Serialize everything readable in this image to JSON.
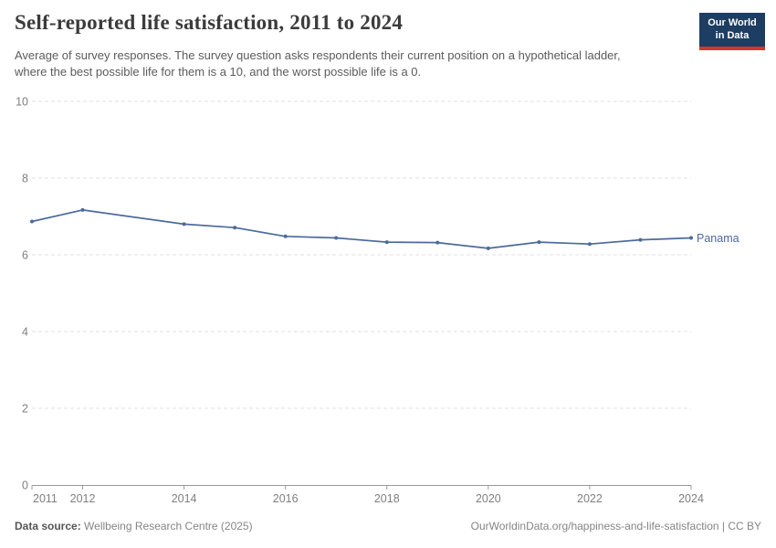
{
  "header": {
    "title": "Self-reported life satisfaction, 2011 to 2024",
    "subtitle": "Average of survey responses. The survey question asks respondents their current position on a hypothetical ladder, where the best possible life for them is a 10, and the worst possible life is a 0.",
    "logo": {
      "line1": "Our World",
      "line2": "in Data",
      "bg": "#1d3d63",
      "accent": "#d7342c"
    }
  },
  "chart_data": {
    "type": "line",
    "title": "Self-reported life satisfaction, 2011 to 2024",
    "xlabel": "",
    "ylabel": "",
    "xlim": [
      2011,
      2024
    ],
    "ylim": [
      0,
      10
    ],
    "x_ticks": [
      2011,
      2012,
      2014,
      2016,
      2018,
      2020,
      2022,
      2024
    ],
    "y_ticks": [
      0,
      2,
      4,
      6,
      8,
      10
    ],
    "grid": "horizontal-dashed",
    "legend": "inline-end-label",
    "series": [
      {
        "name": "Panama",
        "color": "#4c6a9c",
        "x": [
          2011,
          2012,
          2014,
          2015,
          2016,
          2017,
          2018,
          2019,
          2020,
          2021,
          2022,
          2023,
          2024
        ],
        "values": [
          6.87,
          7.17,
          6.8,
          6.71,
          6.48,
          6.44,
          6.33,
          6.32,
          6.17,
          6.33,
          6.28,
          6.39,
          6.44
        ]
      }
    ]
  },
  "colors": {
    "grid": "#e2e2e2",
    "axis": "#999999",
    "tick_label": "#7f7f7f"
  },
  "footer": {
    "datasource_label": "Data source:",
    "datasource_value": "Wellbeing Research Centre (2025)",
    "attribution": "OurWorldinData.org/happiness-and-life-satisfaction | CC BY"
  }
}
